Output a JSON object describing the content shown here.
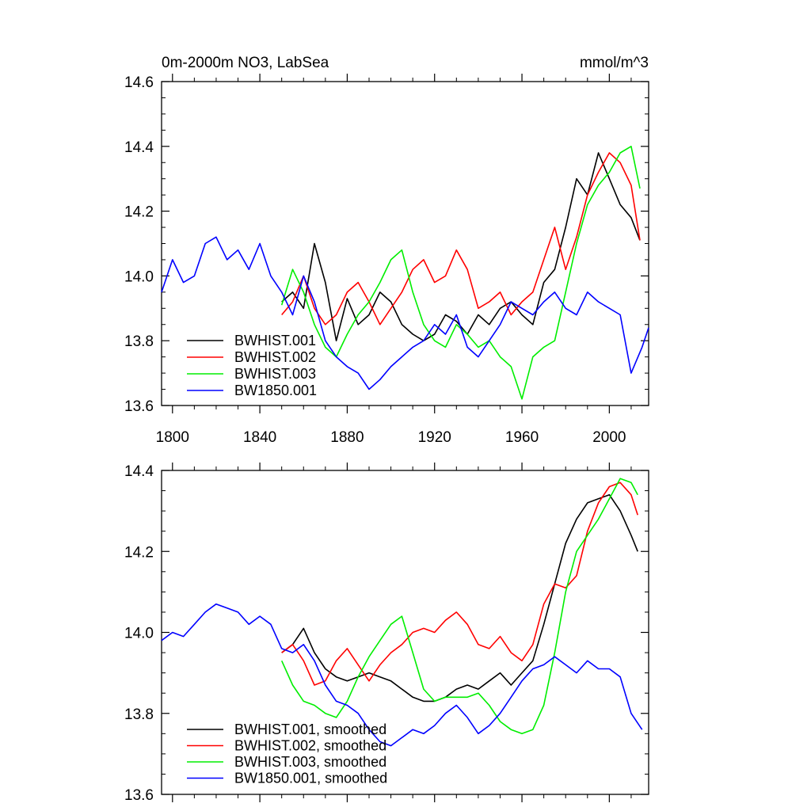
{
  "chart_data": [
    {
      "type": "line",
      "title": "0m-2000m NO3, LabSea",
      "units": "mmol/m^3",
      "xlim": [
        1795,
        2018
      ],
      "ylim": [
        13.6,
        14.6
      ],
      "xticks": [
        1800,
        1840,
        1880,
        1920,
        1960,
        2000
      ],
      "xtick_labels": [
        "1800",
        "1840",
        "1880",
        "1920",
        "1960",
        "2000"
      ],
      "yticks": [
        13.6,
        13.8,
        14.0,
        14.2,
        14.4,
        14.6
      ],
      "ytick_labels": [
        "13.6",
        "13.8",
        "14.0",
        "14.2",
        "14.4",
        "14.6"
      ],
      "legend_position": "bottom-left",
      "series": [
        {
          "name": "BWHIST.001",
          "color": "#000000",
          "x": [
            1850,
            1855,
            1860,
            1865,
            1870,
            1875,
            1880,
            1885,
            1890,
            1895,
            1900,
            1905,
            1910,
            1915,
            1920,
            1925,
            1930,
            1935,
            1940,
            1945,
            1950,
            1955,
            1960,
            1965,
            1970,
            1975,
            1980,
            1985,
            1990,
            1995,
            2000,
            2005,
            2010,
            2014
          ],
          "y": [
            13.92,
            13.95,
            13.9,
            14.1,
            13.98,
            13.8,
            13.93,
            13.85,
            13.88,
            13.95,
            13.92,
            13.85,
            13.82,
            13.8,
            13.82,
            13.88,
            13.86,
            13.82,
            13.88,
            13.85,
            13.9,
            13.92,
            13.88,
            13.85,
            13.98,
            14.02,
            14.15,
            14.3,
            14.25,
            14.38,
            14.3,
            14.22,
            14.18,
            14.11
          ]
        },
        {
          "name": "BWHIST.002",
          "color": "#ff0000",
          "x": [
            1850,
            1855,
            1860,
            1865,
            1870,
            1875,
            1880,
            1885,
            1890,
            1895,
            1900,
            1905,
            1910,
            1915,
            1920,
            1925,
            1930,
            1935,
            1940,
            1945,
            1950,
            1955,
            1960,
            1965,
            1970,
            1975,
            1980,
            1985,
            1990,
            1995,
            2000,
            2005,
            2010,
            2014
          ],
          "y": [
            13.88,
            13.92,
            14.0,
            13.9,
            13.85,
            13.88,
            13.95,
            13.98,
            13.92,
            13.85,
            13.9,
            13.95,
            14.02,
            14.05,
            13.98,
            14.0,
            14.08,
            14.02,
            13.9,
            13.92,
            13.95,
            13.88,
            13.92,
            13.95,
            14.05,
            14.15,
            14.02,
            14.12,
            14.25,
            14.32,
            14.38,
            14.35,
            14.28,
            14.11
          ]
        },
        {
          "name": "BWHIST.003",
          "color": "#00ee00",
          "x": [
            1850,
            1855,
            1860,
            1865,
            1870,
            1875,
            1880,
            1885,
            1890,
            1895,
            1900,
            1905,
            1910,
            1915,
            1920,
            1925,
            1930,
            1935,
            1940,
            1945,
            1950,
            1955,
            1960,
            1965,
            1970,
            1975,
            1980,
            1985,
            1990,
            1995,
            2000,
            2005,
            2010,
            2014
          ],
          "y": [
            13.91,
            14.02,
            13.95,
            13.85,
            13.78,
            13.75,
            13.82,
            13.88,
            13.92,
            13.98,
            14.05,
            14.08,
            13.95,
            13.85,
            13.8,
            13.78,
            13.85,
            13.82,
            13.78,
            13.8,
            13.75,
            13.72,
            13.62,
            13.75,
            13.78,
            13.8,
            13.95,
            14.1,
            14.22,
            14.28,
            14.32,
            14.38,
            14.4,
            14.27
          ]
        },
        {
          "name": "BW1850.001",
          "color": "#0000ff",
          "x": [
            1795,
            1800,
            1805,
            1810,
            1815,
            1820,
            1825,
            1830,
            1835,
            1840,
            1845,
            1850,
            1855,
            1860,
            1865,
            1870,
            1875,
            1880,
            1885,
            1890,
            1895,
            1900,
            1905,
            1910,
            1915,
            1920,
            1925,
            1930,
            1935,
            1940,
            1945,
            1950,
            1955,
            1960,
            1965,
            1970,
            1975,
            1980,
            1985,
            1990,
            1995,
            2000,
            2005,
            2010,
            2015,
            2018
          ],
          "y": [
            13.95,
            14.05,
            13.98,
            14.0,
            14.1,
            14.12,
            14.05,
            14.08,
            14.02,
            14.1,
            14.0,
            13.95,
            13.88,
            14.0,
            13.92,
            13.8,
            13.75,
            13.72,
            13.7,
            13.65,
            13.68,
            13.72,
            13.75,
            13.78,
            13.8,
            13.85,
            13.82,
            13.88,
            13.78,
            13.75,
            13.8,
            13.85,
            13.92,
            13.9,
            13.88,
            13.92,
            13.95,
            13.9,
            13.88,
            13.95,
            13.92,
            13.9,
            13.88,
            13.7,
            13.78,
            13.84
          ]
        }
      ]
    },
    {
      "type": "line",
      "xlim": [
        1795,
        2018
      ],
      "ylim": [
        13.6,
        14.4
      ],
      "yticks": [
        13.6,
        13.8,
        14.0,
        14.2,
        14.4
      ],
      "ytick_labels": [
        "13.6",
        "13.8",
        "14.0",
        "14.2",
        "14.4"
      ],
      "legend_position": "bottom-left",
      "series": [
        {
          "name": "BWHIST.001, smoothed",
          "color": "#000000",
          "x": [
            1850,
            1855,
            1860,
            1865,
            1870,
            1875,
            1880,
            1885,
            1890,
            1895,
            1900,
            1905,
            1910,
            1915,
            1920,
            1925,
            1930,
            1935,
            1940,
            1945,
            1950,
            1955,
            1960,
            1965,
            1970,
            1975,
            1980,
            1985,
            1990,
            1995,
            2000,
            2005,
            2010,
            2013
          ],
          "y": [
            13.95,
            13.97,
            14.01,
            13.95,
            13.91,
            13.89,
            13.88,
            13.89,
            13.9,
            13.89,
            13.88,
            13.86,
            13.84,
            13.83,
            13.83,
            13.84,
            13.86,
            13.87,
            13.86,
            13.88,
            13.9,
            13.87,
            13.9,
            13.93,
            14.02,
            14.12,
            14.22,
            14.28,
            14.32,
            14.33,
            14.34,
            14.3,
            14.24,
            14.2
          ]
        },
        {
          "name": "BWHIST.002, smoothed",
          "color": "#ff0000",
          "x": [
            1850,
            1855,
            1860,
            1865,
            1870,
            1875,
            1880,
            1885,
            1890,
            1895,
            1900,
            1905,
            1910,
            1915,
            1920,
            1925,
            1930,
            1935,
            1940,
            1945,
            1950,
            1955,
            1960,
            1965,
            1970,
            1975,
            1980,
            1985,
            1990,
            1995,
            2000,
            2005,
            2010,
            2013
          ],
          "y": [
            13.95,
            13.97,
            13.93,
            13.87,
            13.88,
            13.93,
            13.96,
            13.92,
            13.88,
            13.92,
            13.95,
            13.97,
            14.0,
            14.01,
            14.0,
            14.03,
            14.05,
            14.02,
            13.97,
            13.96,
            13.99,
            13.95,
            13.93,
            13.97,
            14.07,
            14.12,
            14.11,
            14.14,
            14.25,
            14.32,
            14.36,
            14.37,
            14.34,
            14.29
          ]
        },
        {
          "name": "BWHIST.003, smoothed",
          "color": "#00ee00",
          "x": [
            1850,
            1855,
            1860,
            1865,
            1870,
            1875,
            1880,
            1885,
            1890,
            1895,
            1900,
            1905,
            1910,
            1915,
            1920,
            1925,
            1930,
            1935,
            1940,
            1945,
            1950,
            1955,
            1960,
            1965,
            1970,
            1975,
            1980,
            1985,
            1990,
            1995,
            2000,
            2005,
            2010,
            2013
          ],
          "y": [
            13.93,
            13.87,
            13.83,
            13.82,
            13.8,
            13.79,
            13.83,
            13.89,
            13.94,
            13.98,
            14.02,
            14.04,
            13.95,
            13.86,
            13.83,
            13.84,
            13.84,
            13.84,
            13.85,
            13.82,
            13.78,
            13.76,
            13.75,
            13.76,
            13.82,
            13.95,
            14.1,
            14.2,
            14.24,
            14.28,
            14.33,
            14.38,
            14.37,
            14.34
          ]
        },
        {
          "name": "BW1850.001, smoothed",
          "color": "#0000ff",
          "x": [
            1795,
            1800,
            1805,
            1810,
            1815,
            1820,
            1825,
            1830,
            1835,
            1840,
            1845,
            1850,
            1855,
            1860,
            1865,
            1870,
            1875,
            1880,
            1885,
            1890,
            1895,
            1900,
            1905,
            1910,
            1915,
            1920,
            1925,
            1930,
            1935,
            1940,
            1945,
            1950,
            1955,
            1960,
            1965,
            1970,
            1975,
            1980,
            1985,
            1990,
            1995,
            2000,
            2005,
            2010,
            2015
          ],
          "y": [
            13.98,
            14.0,
            13.99,
            14.02,
            14.05,
            14.07,
            14.06,
            14.05,
            14.02,
            14.04,
            14.02,
            13.96,
            13.95,
            13.97,
            13.93,
            13.87,
            13.83,
            13.82,
            13.8,
            13.76,
            13.73,
            13.72,
            13.74,
            13.76,
            13.75,
            13.77,
            13.8,
            13.82,
            13.79,
            13.75,
            13.77,
            13.8,
            13.84,
            13.88,
            13.91,
            13.92,
            13.94,
            13.92,
            13.9,
            13.93,
            13.91,
            13.91,
            13.89,
            13.8,
            13.76
          ]
        }
      ]
    }
  ]
}
